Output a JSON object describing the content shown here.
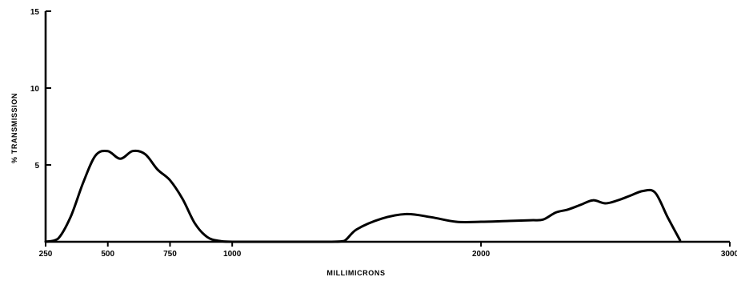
{
  "chart_data": {
    "type": "line",
    "xlabel": "MILLIMICRONS",
    "ylabel": "% TRANSMISSION",
    "xlim": [
      250,
      3000
    ],
    "ylim": [
      0,
      15
    ],
    "grid": false,
    "x_ticks": [
      {
        "value": 250,
        "label": "250"
      },
      {
        "value": 500,
        "label": "500"
      },
      {
        "value": 750,
        "label": "750"
      },
      {
        "value": 1000,
        "label": "1000"
      },
      {
        "value": 2000,
        "label": "2000"
      },
      {
        "value": 3000,
        "label": "3000"
      }
    ],
    "y_ticks": [
      {
        "value": 5,
        "label": "5"
      },
      {
        "value": 10,
        "label": "10"
      },
      {
        "value": 15,
        "label": "15"
      }
    ],
    "series": [
      {
        "x": [
          250,
          300,
          350,
          400,
          450,
          500,
          550,
          600,
          650,
          700,
          750,
          800,
          850,
          900,
          950,
          1000,
          1100,
          1200,
          1300,
          1400,
          1450,
          1500,
          1600,
          1700,
          1800,
          1900,
          2000,
          2100,
          2200,
          2250,
          2300,
          2350,
          2400,
          2450,
          2500,
          2550,
          2600,
          2650,
          2700,
          2750,
          2800
        ],
        "y": [
          0,
          0.2,
          1.6,
          3.8,
          5.6,
          5.9,
          5.4,
          5.9,
          5.7,
          4.7,
          4.0,
          2.8,
          1.2,
          0.3,
          0.05,
          0,
          0,
          0,
          0,
          0,
          0.05,
          0.8,
          1.5,
          1.8,
          1.6,
          1.3,
          1.3,
          1.35,
          1.4,
          1.45,
          1.9,
          2.1,
          2.4,
          2.7,
          2.5,
          2.7,
          3.0,
          3.3,
          3.2,
          1.6,
          0.1
        ]
      }
    ]
  }
}
